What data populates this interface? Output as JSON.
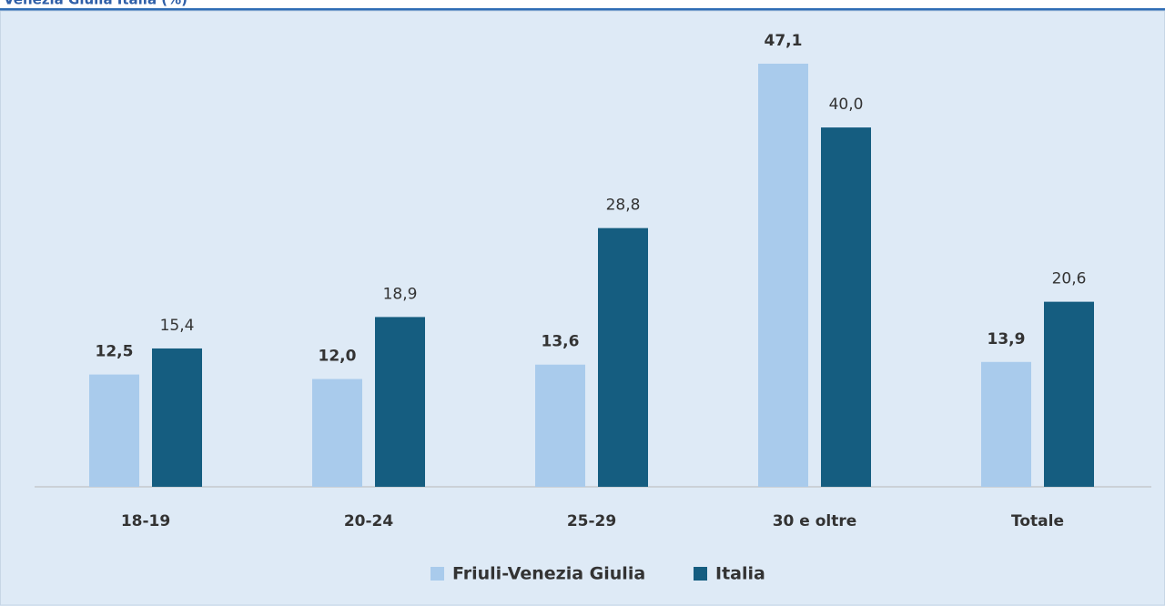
{
  "chart_data": {
    "type": "bar",
    "title": "Venezia Giulia Italia (%)",
    "categories": [
      "18-19",
      "20-24",
      "25-29",
      "30 e oltre",
      "Totale"
    ],
    "series": [
      {
        "name": "Friuli-Venezia Giulia",
        "color": "#a9cbec",
        "values": [
          12.5,
          12.0,
          13.6,
          47.1,
          13.9
        ],
        "value_labels": [
          "12,5",
          "12,0",
          "13,6",
          "47,1",
          "13,9"
        ]
      },
      {
        "name": "Italia",
        "color": "#155d80",
        "values": [
          15.4,
          18.9,
          28.8,
          40.0,
          20.6
        ],
        "value_labels": [
          "15,4",
          "18,9",
          "28,8",
          "40,0",
          "20,6"
        ]
      }
    ]
  }
}
